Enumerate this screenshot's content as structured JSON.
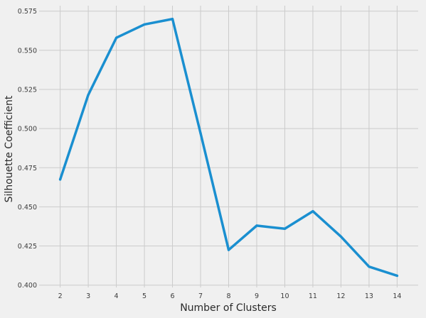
{
  "chart_data": {
    "type": "line",
    "xlabel": "Number of Clusters",
    "ylabel": "Silhouette Coefficient",
    "x": [
      2,
      3,
      4,
      5,
      6,
      7,
      8,
      9,
      10,
      11,
      12,
      13,
      14
    ],
    "series": [
      {
        "values": [
          0.4675,
          0.5215,
          0.558,
          0.5665,
          0.57,
          0.497,
          0.4225,
          0.438,
          0.436,
          0.4472,
          0.431,
          0.4118,
          0.406
        ],
        "color": "#1a8fd0"
      }
    ],
    "xticks": [
      "2",
      "3",
      "4",
      "5",
      "6",
      "7",
      "8",
      "9",
      "10",
      "11",
      "12",
      "13",
      "14"
    ],
    "yticks": [
      "0.400",
      "0.425",
      "0.450",
      "0.475",
      "0.500",
      "0.525",
      "0.550",
      "0.575"
    ],
    "ytick_values": [
      0.4,
      0.425,
      0.45,
      0.475,
      0.5,
      0.525,
      0.55,
      0.575
    ],
    "xlim": [
      1.25,
      14.75
    ],
    "ylim": [
      0.3985,
      0.5785
    ],
    "grid": true,
    "style": "fivethirtyeight",
    "background_color": "#f0f0f0",
    "grid_color": "#cbcbcb"
  }
}
